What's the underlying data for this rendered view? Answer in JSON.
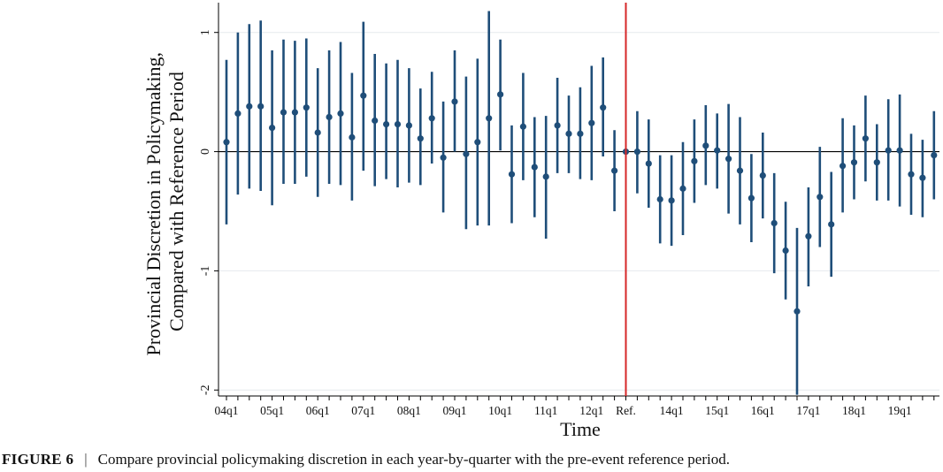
{
  "chart_data": {
    "type": "scatter",
    "subtype": "coefficient plot with 95% confidence intervals",
    "ylabel_lines": [
      "Provincial Discretion in Policymaking,",
      "Compared with Reference Period"
    ],
    "xlabel": "Time",
    "ylim": [
      -2.05,
      1.25
    ],
    "yticks": [
      {
        "value": 1,
        "label": "1"
      },
      {
        "value": 0,
        "label": "0"
      },
      {
        "value": -1,
        "label": "-1"
      },
      {
        "value": -2,
        "label": "-2"
      }
    ],
    "xtick_labels": [
      {
        "index": 0,
        "label": "04q1"
      },
      {
        "index": 4,
        "label": "05q1"
      },
      {
        "index": 8,
        "label": "06q1"
      },
      {
        "index": 12,
        "label": "07q1"
      },
      {
        "index": 16,
        "label": "08q1"
      },
      {
        "index": 20,
        "label": "09q1"
      },
      {
        "index": 24,
        "label": "10q1"
      },
      {
        "index": 28,
        "label": "11q1"
      },
      {
        "index": 32,
        "label": "12q1"
      },
      {
        "index": 35,
        "label": "Ref."
      },
      {
        "index": 39,
        "label": "14q1"
      },
      {
        "index": 43,
        "label": "15q1"
      },
      {
        "index": 47,
        "label": "16q1"
      },
      {
        "index": 51,
        "label": "17q1"
      },
      {
        "index": 55,
        "label": "18q1"
      },
      {
        "index": 59,
        "label": "19q1"
      }
    ],
    "reference_index": 35,
    "reference_line_color": "#d62728",
    "marker_color": "#1f4e79",
    "grid": "horizontal",
    "points": [
      {
        "e": 0.08,
        "lo": -0.61,
        "hi": 0.77
      },
      {
        "e": 0.32,
        "lo": -0.36,
        "hi": 1.0
      },
      {
        "e": 0.38,
        "lo": -0.31,
        "hi": 1.07
      },
      {
        "e": 0.38,
        "lo": -0.33,
        "hi": 1.1
      },
      {
        "e": 0.2,
        "lo": -0.45,
        "hi": 0.85
      },
      {
        "e": 0.33,
        "lo": -0.27,
        "hi": 0.94
      },
      {
        "e": 0.33,
        "lo": -0.27,
        "hi": 0.93
      },
      {
        "e": 0.37,
        "lo": -0.21,
        "hi": 0.95
      },
      {
        "e": 0.16,
        "lo": -0.38,
        "hi": 0.7
      },
      {
        "e": 0.29,
        "lo": -0.27,
        "hi": 0.85
      },
      {
        "e": 0.32,
        "lo": -0.28,
        "hi": 0.92
      },
      {
        "e": 0.12,
        "lo": -0.41,
        "hi": 0.66
      },
      {
        "e": 0.47,
        "lo": -0.16,
        "hi": 1.09
      },
      {
        "e": 0.26,
        "lo": -0.29,
        "hi": 0.82
      },
      {
        "e": 0.23,
        "lo": -0.23,
        "hi": 0.74
      },
      {
        "e": 0.23,
        "lo": -0.3,
        "hi": 0.77
      },
      {
        "e": 0.22,
        "lo": -0.26,
        "hi": 0.7
      },
      {
        "e": 0.11,
        "lo": -0.28,
        "hi": 0.53
      },
      {
        "e": 0.28,
        "lo": -0.1,
        "hi": 0.67
      },
      {
        "e": -0.05,
        "lo": -0.51,
        "hi": 0.42
      },
      {
        "e": 0.42,
        "lo": 0.0,
        "hi": 0.85
      },
      {
        "e": -0.02,
        "lo": -0.65,
        "hi": 0.63
      },
      {
        "e": 0.08,
        "lo": -0.62,
        "hi": 0.78
      },
      {
        "e": 0.28,
        "lo": -0.62,
        "hi": 1.18
      },
      {
        "e": 0.48,
        "lo": 0.01,
        "hi": 0.94
      },
      {
        "e": -0.19,
        "lo": -0.6,
        "hi": 0.22
      },
      {
        "e": 0.21,
        "lo": -0.24,
        "hi": 0.66
      },
      {
        "e": -0.13,
        "lo": -0.55,
        "hi": 0.29
      },
      {
        "e": -0.21,
        "lo": -0.73,
        "hi": 0.3
      },
      {
        "e": 0.22,
        "lo": -0.18,
        "hi": 0.62
      },
      {
        "e": 0.15,
        "lo": -0.18,
        "hi": 0.47
      },
      {
        "e": 0.15,
        "lo": -0.23,
        "hi": 0.54
      },
      {
        "e": 0.24,
        "lo": -0.24,
        "hi": 0.72
      },
      {
        "e": 0.37,
        "lo": -0.04,
        "hi": 0.79
      },
      {
        "e": -0.16,
        "lo": -0.5,
        "hi": 0.18
      },
      {
        "e": 0.0,
        "lo": 0.0,
        "hi": 0.0
      },
      {
        "e": 0.0,
        "lo": -0.35,
        "hi": 0.34
      },
      {
        "e": -0.1,
        "lo": -0.47,
        "hi": 0.27
      },
      {
        "e": -0.4,
        "lo": -0.77,
        "hi": -0.03
      },
      {
        "e": -0.41,
        "lo": -0.79,
        "hi": -0.03
      },
      {
        "e": -0.31,
        "lo": -0.7,
        "hi": 0.08
      },
      {
        "e": -0.08,
        "lo": -0.43,
        "hi": 0.27
      },
      {
        "e": 0.05,
        "lo": -0.28,
        "hi": 0.39
      },
      {
        "e": 0.01,
        "lo": -0.31,
        "hi": 0.32
      },
      {
        "e": -0.06,
        "lo": -0.52,
        "hi": 0.4
      },
      {
        "e": -0.16,
        "lo": -0.61,
        "hi": 0.29
      },
      {
        "e": -0.39,
        "lo": -0.76,
        "hi": -0.02
      },
      {
        "e": -0.2,
        "lo": -0.56,
        "hi": 0.16
      },
      {
        "e": -0.6,
        "lo": -1.02,
        "hi": -0.18
      },
      {
        "e": -0.83,
        "lo": -1.24,
        "hi": -0.42
      },
      {
        "e": -1.34,
        "lo": -2.04,
        "hi": -0.64
      },
      {
        "e": -0.71,
        "lo": -1.13,
        "hi": -0.3
      },
      {
        "e": -0.38,
        "lo": -0.8,
        "hi": 0.04
      },
      {
        "e": -0.61,
        "lo": -1.05,
        "hi": -0.17
      },
      {
        "e": -0.12,
        "lo": -0.51,
        "hi": 0.28
      },
      {
        "e": -0.09,
        "lo": -0.4,
        "hi": 0.22
      },
      {
        "e": 0.11,
        "lo": -0.25,
        "hi": 0.47
      },
      {
        "e": -0.09,
        "lo": -0.41,
        "hi": 0.23
      },
      {
        "e": 0.01,
        "lo": -0.41,
        "hi": 0.44
      },
      {
        "e": 0.01,
        "lo": -0.46,
        "hi": 0.48
      },
      {
        "e": -0.19,
        "lo": -0.53,
        "hi": 0.15
      },
      {
        "e": -0.22,
        "lo": -0.55,
        "hi": 0.1
      },
      {
        "e": -0.03,
        "lo": -0.4,
        "hi": 0.34
      }
    ]
  },
  "caption": {
    "label": "FIGURE 6",
    "separator": "|",
    "text": "Compare provincial policymaking discretion in each year-by-quarter with the pre-event reference period."
  }
}
